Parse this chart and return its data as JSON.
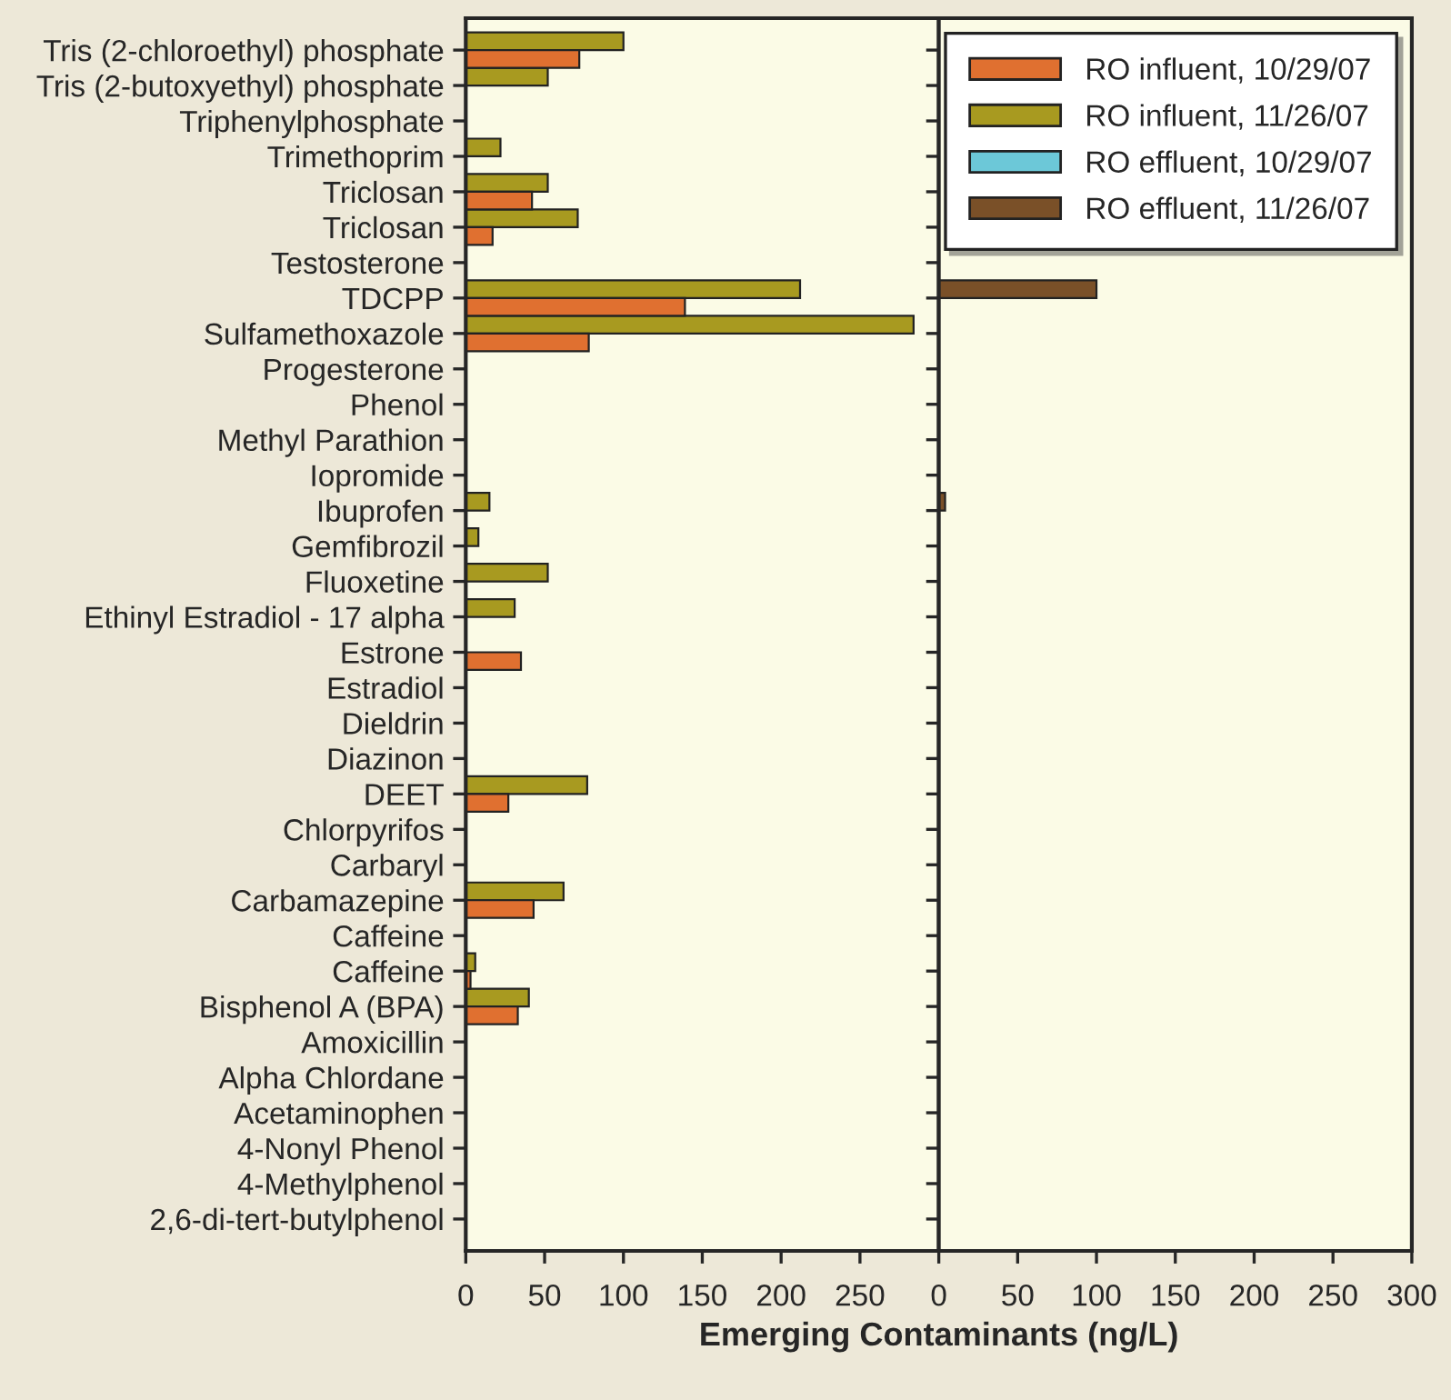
{
  "chart_data": [
    {
      "type": "bar",
      "orientation": "horizontal",
      "xlabel": "Emerging Contaminants (ng/L)",
      "legend": "top right",
      "categories": [
        "Tris (2-chloroethyl) phosphate",
        "Tris (2-butoxyethyl) phosphate",
        "Triphenylphosphate",
        "Trimethoprim",
        "Triclosan",
        "Triclosan",
        "Testosterone",
        "TDCPP",
        "Sulfamethoxazole",
        "Progesterone",
        "Phenol",
        "Methyl Parathion",
        "Iopromide",
        "Ibuprofen",
        "Gemfibrozil",
        "Fluoxetine",
        "Ethinyl Estradiol - 17 alpha",
        "Estrone",
        "Estradiol",
        "Dieldrin",
        "Diazinon",
        "DEET",
        "Chlorpyrifos",
        "Carbaryl",
        "Carbamazepine",
        "Caffeine",
        "Caffeine",
        "Bisphenol A (BPA)",
        "Amoxicillin",
        "Alpha Chlordane",
        "Acetaminophen",
        "4-Nonyl Phenol",
        "4-Methylphenol",
        "2,6-di-tert-butylphenol"
      ],
      "xlim": [
        0,
        300
      ],
      "xticks": [
        0,
        50,
        100,
        150,
        200,
        250
      ],
      "series": [
        {
          "name": "RO influent, 11/26/07",
          "color": "#a89a20",
          "values": [
            100,
            52,
            null,
            22,
            52,
            71,
            null,
            212,
            284,
            null,
            null,
            null,
            null,
            15,
            8,
            52,
            31,
            null,
            null,
            null,
            null,
            77,
            null,
            null,
            62,
            null,
            6,
            40,
            null,
            null,
            null,
            null,
            null,
            null
          ]
        },
        {
          "name": "RO influent, 10/29/07",
          "color": "#e07030",
          "values": [
            72,
            null,
            null,
            null,
            42,
            17,
            null,
            139,
            78,
            null,
            null,
            null,
            null,
            null,
            null,
            null,
            null,
            35,
            null,
            null,
            null,
            27,
            null,
            null,
            43,
            null,
            3,
            33,
            null,
            null,
            null,
            null,
            null,
            null
          ]
        }
      ]
    },
    {
      "type": "bar",
      "orientation": "horizontal",
      "legend": "top right",
      "tick_labels": "x",
      "categories": [
        null,
        null,
        null,
        null,
        null,
        null,
        null,
        null,
        null,
        null,
        null,
        null,
        null,
        null,
        null,
        null,
        null,
        null,
        null,
        null,
        null,
        null,
        null,
        null,
        null,
        null,
        null,
        null,
        null,
        null,
        null,
        null,
        null,
        null
      ],
      "xlim": [
        0,
        300
      ],
      "xticks": [
        0,
        50,
        100,
        150,
        200,
        250,
        300
      ],
      "series": [
        {
          "name": "RO effluent, 11/26/07",
          "color": "#7a5028",
          "values": [
            null,
            null,
            null,
            null,
            null,
            null,
            null,
            100,
            null,
            null,
            null,
            null,
            null,
            4,
            null,
            null,
            null,
            null,
            null,
            null,
            null,
            null,
            null,
            null,
            null,
            null,
            null,
            null,
            null,
            null,
            null,
            null,
            null,
            null
          ]
        },
        {
          "name": "RO effluent, 10/29/07",
          "color": "#6cc8d8",
          "values": [
            null,
            null,
            null,
            null,
            null,
            null,
            null,
            null,
            null,
            null,
            null,
            null,
            null,
            null,
            null,
            null,
            null,
            null,
            null,
            null,
            null,
            null,
            null,
            null,
            null,
            null,
            null,
            null,
            null,
            null,
            null,
            null,
            null,
            null
          ]
        }
      ]
    }
  ]
}
